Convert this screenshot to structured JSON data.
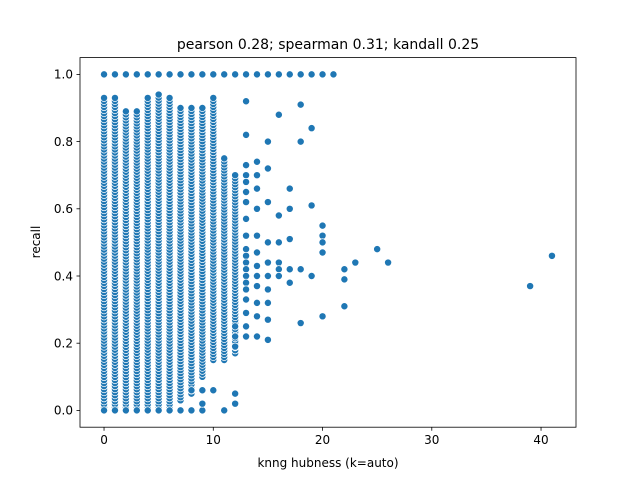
{
  "chart_data": {
    "type": "scatter",
    "title": "pearson 0.28; spearman 0.31; kandall 0.25",
    "xlabel": "knng hubness (k=auto)",
    "ylabel": "recall",
    "xlim": [
      -2.2,
      43.2
    ],
    "ylim": [
      -0.05,
      1.05
    ],
    "xticks": [
      0,
      10,
      20,
      30,
      40
    ],
    "yticks": [
      0.0,
      0.2,
      0.4,
      0.6,
      0.8,
      1.0
    ],
    "xtick_labels": [
      "0",
      "10",
      "20",
      "30",
      "40"
    ],
    "ytick_labels": [
      "0.0",
      "0.2",
      "0.4",
      "0.6",
      "0.8",
      "1.0"
    ],
    "grid": false,
    "marker_color": "#1f77b4",
    "marker_edge_color": "#ffffff",
    "dense_columns": [
      {
        "x": 0,
        "ymin": 0.0,
        "ymax": 0.93
      },
      {
        "x": 1,
        "ymin": 0.0,
        "ymax": 0.93
      },
      {
        "x": 2,
        "ymin": 0.0,
        "ymax": 0.89
      },
      {
        "x": 3,
        "ymin": 0.0,
        "ymax": 0.89
      },
      {
        "x": 4,
        "ymin": 0.0,
        "ymax": 0.93
      },
      {
        "x": 5,
        "ymin": 0.0,
        "ymax": 0.94
      },
      {
        "x": 6,
        "ymin": 0.0,
        "ymax": 0.93
      },
      {
        "x": 7,
        "ymin": 0.03,
        "ymax": 0.9
      },
      {
        "x": 8,
        "ymin": 0.05,
        "ymax": 0.9
      },
      {
        "x": 9,
        "ymin": 0.1,
        "ymax": 0.9
      },
      {
        "x": 10,
        "ymin": 0.15,
        "ymax": 0.93
      },
      {
        "x": 11,
        "ymin": 0.15,
        "ymax": 0.75
      },
      {
        "x": 12,
        "ymin": 0.17,
        "ymax": 0.7
      }
    ],
    "points": [
      {
        "x": 0,
        "y": 1.0
      },
      {
        "x": 1,
        "y": 1.0
      },
      {
        "x": 2,
        "y": 1.0
      },
      {
        "x": 3,
        "y": 1.0
      },
      {
        "x": 4,
        "y": 1.0
      },
      {
        "x": 5,
        "y": 1.0
      },
      {
        "x": 6,
        "y": 1.0
      },
      {
        "x": 7,
        "y": 1.0
      },
      {
        "x": 8,
        "y": 1.0
      },
      {
        "x": 9,
        "y": 1.0
      },
      {
        "x": 10,
        "y": 1.0
      },
      {
        "x": 11,
        "y": 1.0
      },
      {
        "x": 12,
        "y": 1.0
      },
      {
        "x": 13,
        "y": 1.0
      },
      {
        "x": 14,
        "y": 1.0
      },
      {
        "x": 15,
        "y": 1.0
      },
      {
        "x": 16,
        "y": 1.0
      },
      {
        "x": 17,
        "y": 1.0
      },
      {
        "x": 18,
        "y": 1.0
      },
      {
        "x": 19,
        "y": 1.0
      },
      {
        "x": 20,
        "y": 1.0
      },
      {
        "x": 21,
        "y": 1.0
      },
      {
        "x": 0,
        "y": 0.0
      },
      {
        "x": 1,
        "y": 0.0
      },
      {
        "x": 2,
        "y": 0.0
      },
      {
        "x": 3,
        "y": 0.0
      },
      {
        "x": 4,
        "y": 0.0
      },
      {
        "x": 5,
        "y": 0.0
      },
      {
        "x": 6,
        "y": 0.0
      },
      {
        "x": 7,
        "y": 0.0
      },
      {
        "x": 8,
        "y": 0.0
      },
      {
        "x": 9,
        "y": 0.0
      },
      {
        "x": 11,
        "y": 0.0
      },
      {
        "x": 8,
        "y": 0.06
      },
      {
        "x": 9,
        "y": 0.06
      },
      {
        "x": 10,
        "y": 0.06
      },
      {
        "x": 9,
        "y": 0.02
      },
      {
        "x": 12,
        "y": 0.05
      },
      {
        "x": 12,
        "y": 0.02
      },
      {
        "x": 12,
        "y": 0.19
      },
      {
        "x": 12,
        "y": 0.22
      },
      {
        "x": 12,
        "y": 0.25
      },
      {
        "x": 13,
        "y": 0.92
      },
      {
        "x": 13,
        "y": 0.82
      },
      {
        "x": 13,
        "y": 0.73
      },
      {
        "x": 13,
        "y": 0.7
      },
      {
        "x": 13,
        "y": 0.68
      },
      {
        "x": 13,
        "y": 0.65
      },
      {
        "x": 13,
        "y": 0.62
      },
      {
        "x": 13,
        "y": 0.57
      },
      {
        "x": 13,
        "y": 0.52
      },
      {
        "x": 13,
        "y": 0.48
      },
      {
        "x": 13,
        "y": 0.46
      },
      {
        "x": 13,
        "y": 0.44
      },
      {
        "x": 13,
        "y": 0.42
      },
      {
        "x": 13,
        "y": 0.4
      },
      {
        "x": 13,
        "y": 0.38
      },
      {
        "x": 13,
        "y": 0.36
      },
      {
        "x": 13,
        "y": 0.33
      },
      {
        "x": 13,
        "y": 0.29
      },
      {
        "x": 13,
        "y": 0.25
      },
      {
        "x": 13,
        "y": 0.22
      },
      {
        "x": 14,
        "y": 0.74
      },
      {
        "x": 14,
        "y": 0.7
      },
      {
        "x": 14,
        "y": 0.66
      },
      {
        "x": 14,
        "y": 0.6
      },
      {
        "x": 14,
        "y": 0.52
      },
      {
        "x": 14,
        "y": 0.47
      },
      {
        "x": 14,
        "y": 0.43
      },
      {
        "x": 14,
        "y": 0.4
      },
      {
        "x": 14,
        "y": 0.37
      },
      {
        "x": 14,
        "y": 0.32
      },
      {
        "x": 14,
        "y": 0.28
      },
      {
        "x": 14,
        "y": 0.22
      },
      {
        "x": 15,
        "y": 0.8
      },
      {
        "x": 15,
        "y": 0.72
      },
      {
        "x": 15,
        "y": 0.62
      },
      {
        "x": 15,
        "y": 0.5
      },
      {
        "x": 15,
        "y": 0.44
      },
      {
        "x": 15,
        "y": 0.4
      },
      {
        "x": 15,
        "y": 0.36
      },
      {
        "x": 15,
        "y": 0.32
      },
      {
        "x": 15,
        "y": 0.27
      },
      {
        "x": 15,
        "y": 0.21
      },
      {
        "x": 16,
        "y": 0.88
      },
      {
        "x": 16,
        "y": 0.58
      },
      {
        "x": 16,
        "y": 0.5
      },
      {
        "x": 16,
        "y": 0.44
      },
      {
        "x": 16,
        "y": 0.42
      },
      {
        "x": 16,
        "y": 0.4
      },
      {
        "x": 17,
        "y": 0.66
      },
      {
        "x": 17,
        "y": 0.6
      },
      {
        "x": 17,
        "y": 0.51
      },
      {
        "x": 17,
        "y": 0.42
      },
      {
        "x": 17,
        "y": 0.38
      },
      {
        "x": 18,
        "y": 0.91
      },
      {
        "x": 18,
        "y": 0.8
      },
      {
        "x": 18,
        "y": 0.42
      },
      {
        "x": 18,
        "y": 0.26
      },
      {
        "x": 19,
        "y": 0.84
      },
      {
        "x": 19,
        "y": 0.61
      },
      {
        "x": 19,
        "y": 0.4
      },
      {
        "x": 20,
        "y": 0.55
      },
      {
        "x": 20,
        "y": 0.52
      },
      {
        "x": 20,
        "y": 0.5
      },
      {
        "x": 20,
        "y": 0.47
      },
      {
        "x": 20,
        "y": 0.28
      },
      {
        "x": 22,
        "y": 0.42
      },
      {
        "x": 22,
        "y": 0.39
      },
      {
        "x": 22,
        "y": 0.31
      },
      {
        "x": 23,
        "y": 0.44
      },
      {
        "x": 25,
        "y": 0.48
      },
      {
        "x": 26,
        "y": 0.44
      },
      {
        "x": 39,
        "y": 0.37
      },
      {
        "x": 41,
        "y": 0.46
      }
    ]
  }
}
